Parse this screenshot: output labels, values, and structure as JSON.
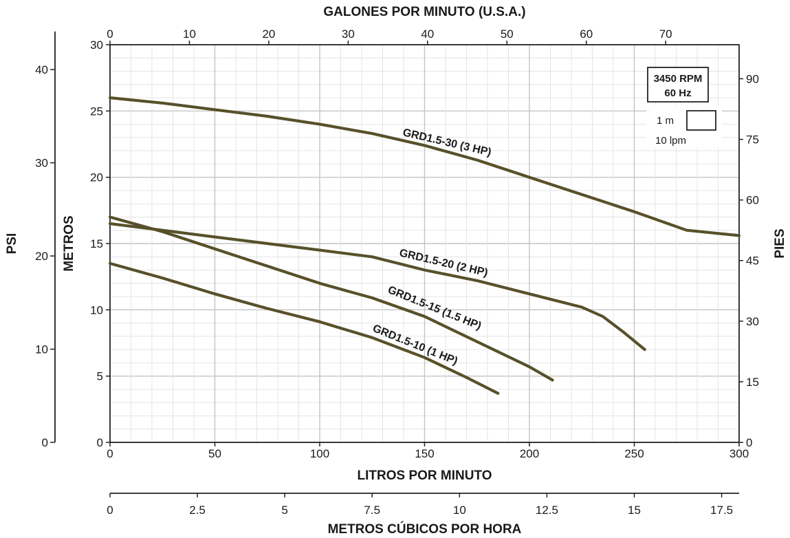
{
  "chart_data": {
    "type": "line",
    "x": {
      "label": "LITROS POR MINUTO",
      "range": [
        0,
        300
      ],
      "ticks": [
        0,
        50,
        100,
        150,
        200,
        250,
        300
      ]
    },
    "x_top": {
      "label": "GALONES POR MINUTO (U.S.A.)",
      "ticks": [
        0,
        10,
        20,
        30,
        40,
        50,
        60,
        70
      ]
    },
    "x_bottom2": {
      "label": "METROS CÚBICOS POR HORA",
      "ticks": [
        0,
        2.5,
        5,
        7.5,
        10,
        12.5,
        15,
        17.5
      ]
    },
    "y": {
      "label": "METROS",
      "range": [
        0,
        30
      ],
      "ticks": [
        0,
        5,
        10,
        15,
        20,
        25,
        30
      ]
    },
    "y_psi": {
      "label": "PSI",
      "ticks": [
        0,
        10,
        20,
        30,
        40
      ]
    },
    "y_right": {
      "label": "PIES",
      "ticks": [
        0,
        15,
        30,
        45,
        60,
        75,
        90
      ]
    },
    "grid": true,
    "legend": {
      "rpm": "3450 RPM",
      "hz": "60 Hz",
      "grid_height": "1 m",
      "grid_width": "10 lpm"
    },
    "series": [
      {
        "name": "GRD1.5-30 (3 HP)",
        "x": [
          0,
          25,
          50,
          75,
          100,
          125,
          150,
          175,
          200,
          225,
          250,
          275,
          300
        ],
        "y": [
          26.0,
          25.6,
          25.1,
          24.6,
          24.0,
          23.3,
          22.4,
          21.3,
          20.0,
          18.7,
          17.4,
          16.0,
          15.6
        ]
      },
      {
        "name": "GRD1.5-20 (2 HP)",
        "x": [
          0,
          25,
          50,
          75,
          100,
          125,
          135,
          150,
          175,
          200,
          225,
          235,
          245,
          255
        ],
        "y": [
          16.5,
          16.0,
          15.5,
          15.0,
          14.5,
          14.0,
          13.6,
          13.0,
          12.2,
          11.2,
          10.2,
          9.5,
          8.3,
          7.0
        ]
      },
      {
        "name": "GRD1.5-15 (1.5 HP)",
        "x": [
          0,
          25,
          50,
          75,
          100,
          125,
          150,
          175,
          200,
          211
        ],
        "y": [
          17.0,
          15.9,
          14.6,
          13.3,
          12.0,
          10.9,
          9.5,
          7.6,
          5.7,
          4.7
        ]
      },
      {
        "name": "GRD1.5-10 (1 HP)",
        "x": [
          0,
          25,
          50,
          75,
          100,
          125,
          150,
          170,
          185
        ],
        "y": [
          13.5,
          12.4,
          11.2,
          10.1,
          9.1,
          7.9,
          6.4,
          4.9,
          3.7
        ]
      }
    ]
  }
}
